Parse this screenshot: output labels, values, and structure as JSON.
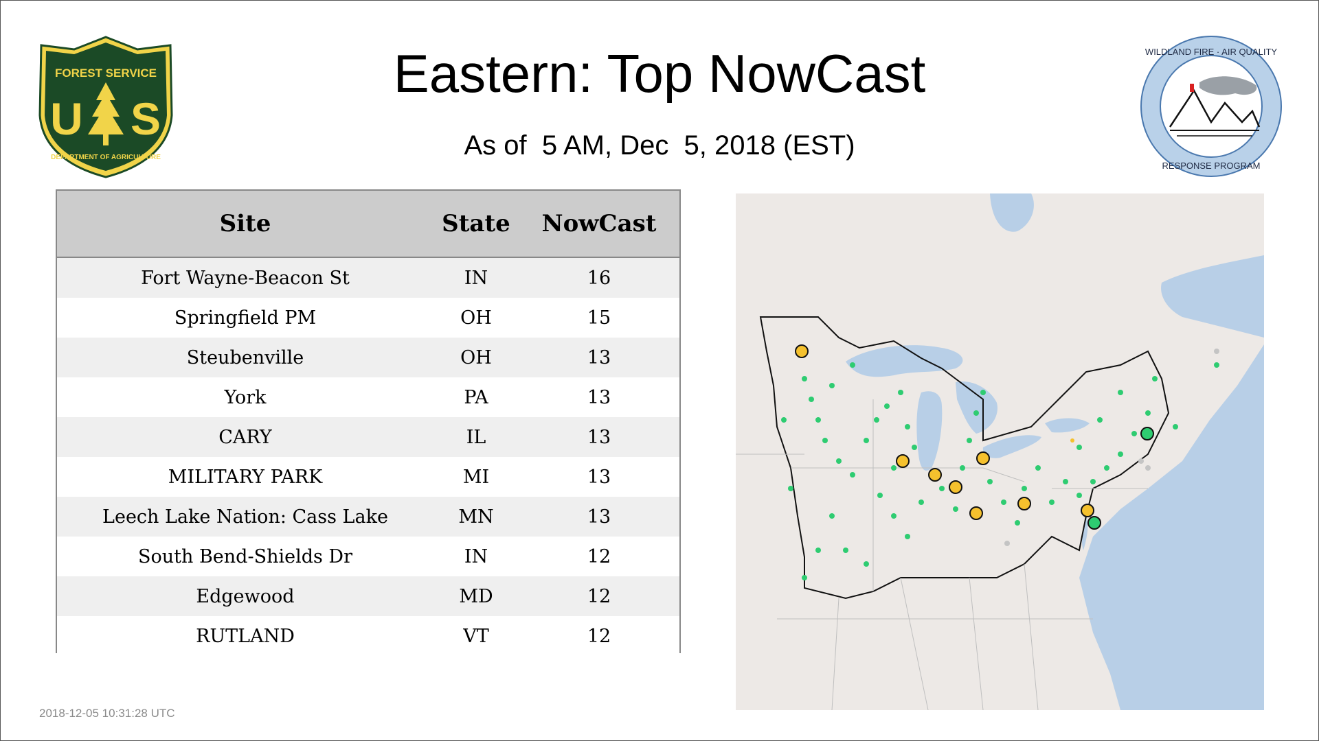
{
  "header": {
    "title": "Eastern: Top NowCast",
    "subtitle": "As of  5 AM, Dec  5, 2018 (EST)"
  },
  "logos": {
    "forest_service": {
      "top_text": "FOREST SERVICE",
      "letters": "U S",
      "bottom_text": "DEPARTMENT OF AGRICULTURE",
      "icon": "pine-tree-icon",
      "colors": {
        "fill": "#1b4a26",
        "accent": "#f1d449"
      }
    },
    "wildland": {
      "top_text": "WILDLAND FIRE · AIR QUALITY",
      "bottom_text": "RESPONSE PROGRAM",
      "icon": "mountains-smoke-icon",
      "colors": {
        "ring": "#b9d1e9",
        "border": "#4a78ae"
      }
    }
  },
  "table": {
    "headers": {
      "site": "Site",
      "state": "State",
      "nowcast": "NowCast"
    },
    "rows": [
      {
        "site": "Fort Wayne-Beacon St",
        "state": "IN",
        "nowcast": "16"
      },
      {
        "site": "Springfield PM",
        "state": "OH",
        "nowcast": "15"
      },
      {
        "site": "Steubenville",
        "state": "OH",
        "nowcast": "13"
      },
      {
        "site": "York",
        "state": "PA",
        "nowcast": "13"
      },
      {
        "site": "CARY",
        "state": "IL",
        "nowcast": "13"
      },
      {
        "site": "MILITARY PARK",
        "state": "MI",
        "nowcast": "13"
      },
      {
        "site": "Leech Lake Nation: Cass Lake",
        "state": "MN",
        "nowcast": "13"
      },
      {
        "site": "South Bend-Shields Dr",
        "state": "IN",
        "nowcast": "12"
      },
      {
        "site": "Edgewood",
        "state": "MD",
        "nowcast": "12"
      },
      {
        "site": "RUTLAND",
        "state": "VT",
        "nowcast": "12"
      }
    ]
  },
  "map": {
    "icon": "eastern-us-map",
    "colors": {
      "land": "#ede9e6",
      "water": "#b8cfe7",
      "good": "#2ecc71",
      "moderate": "#f5c12e",
      "no_data": "#c4c4c4"
    }
  },
  "footer": {
    "timestamp": "2018-12-05 10:31:28 UTC"
  }
}
